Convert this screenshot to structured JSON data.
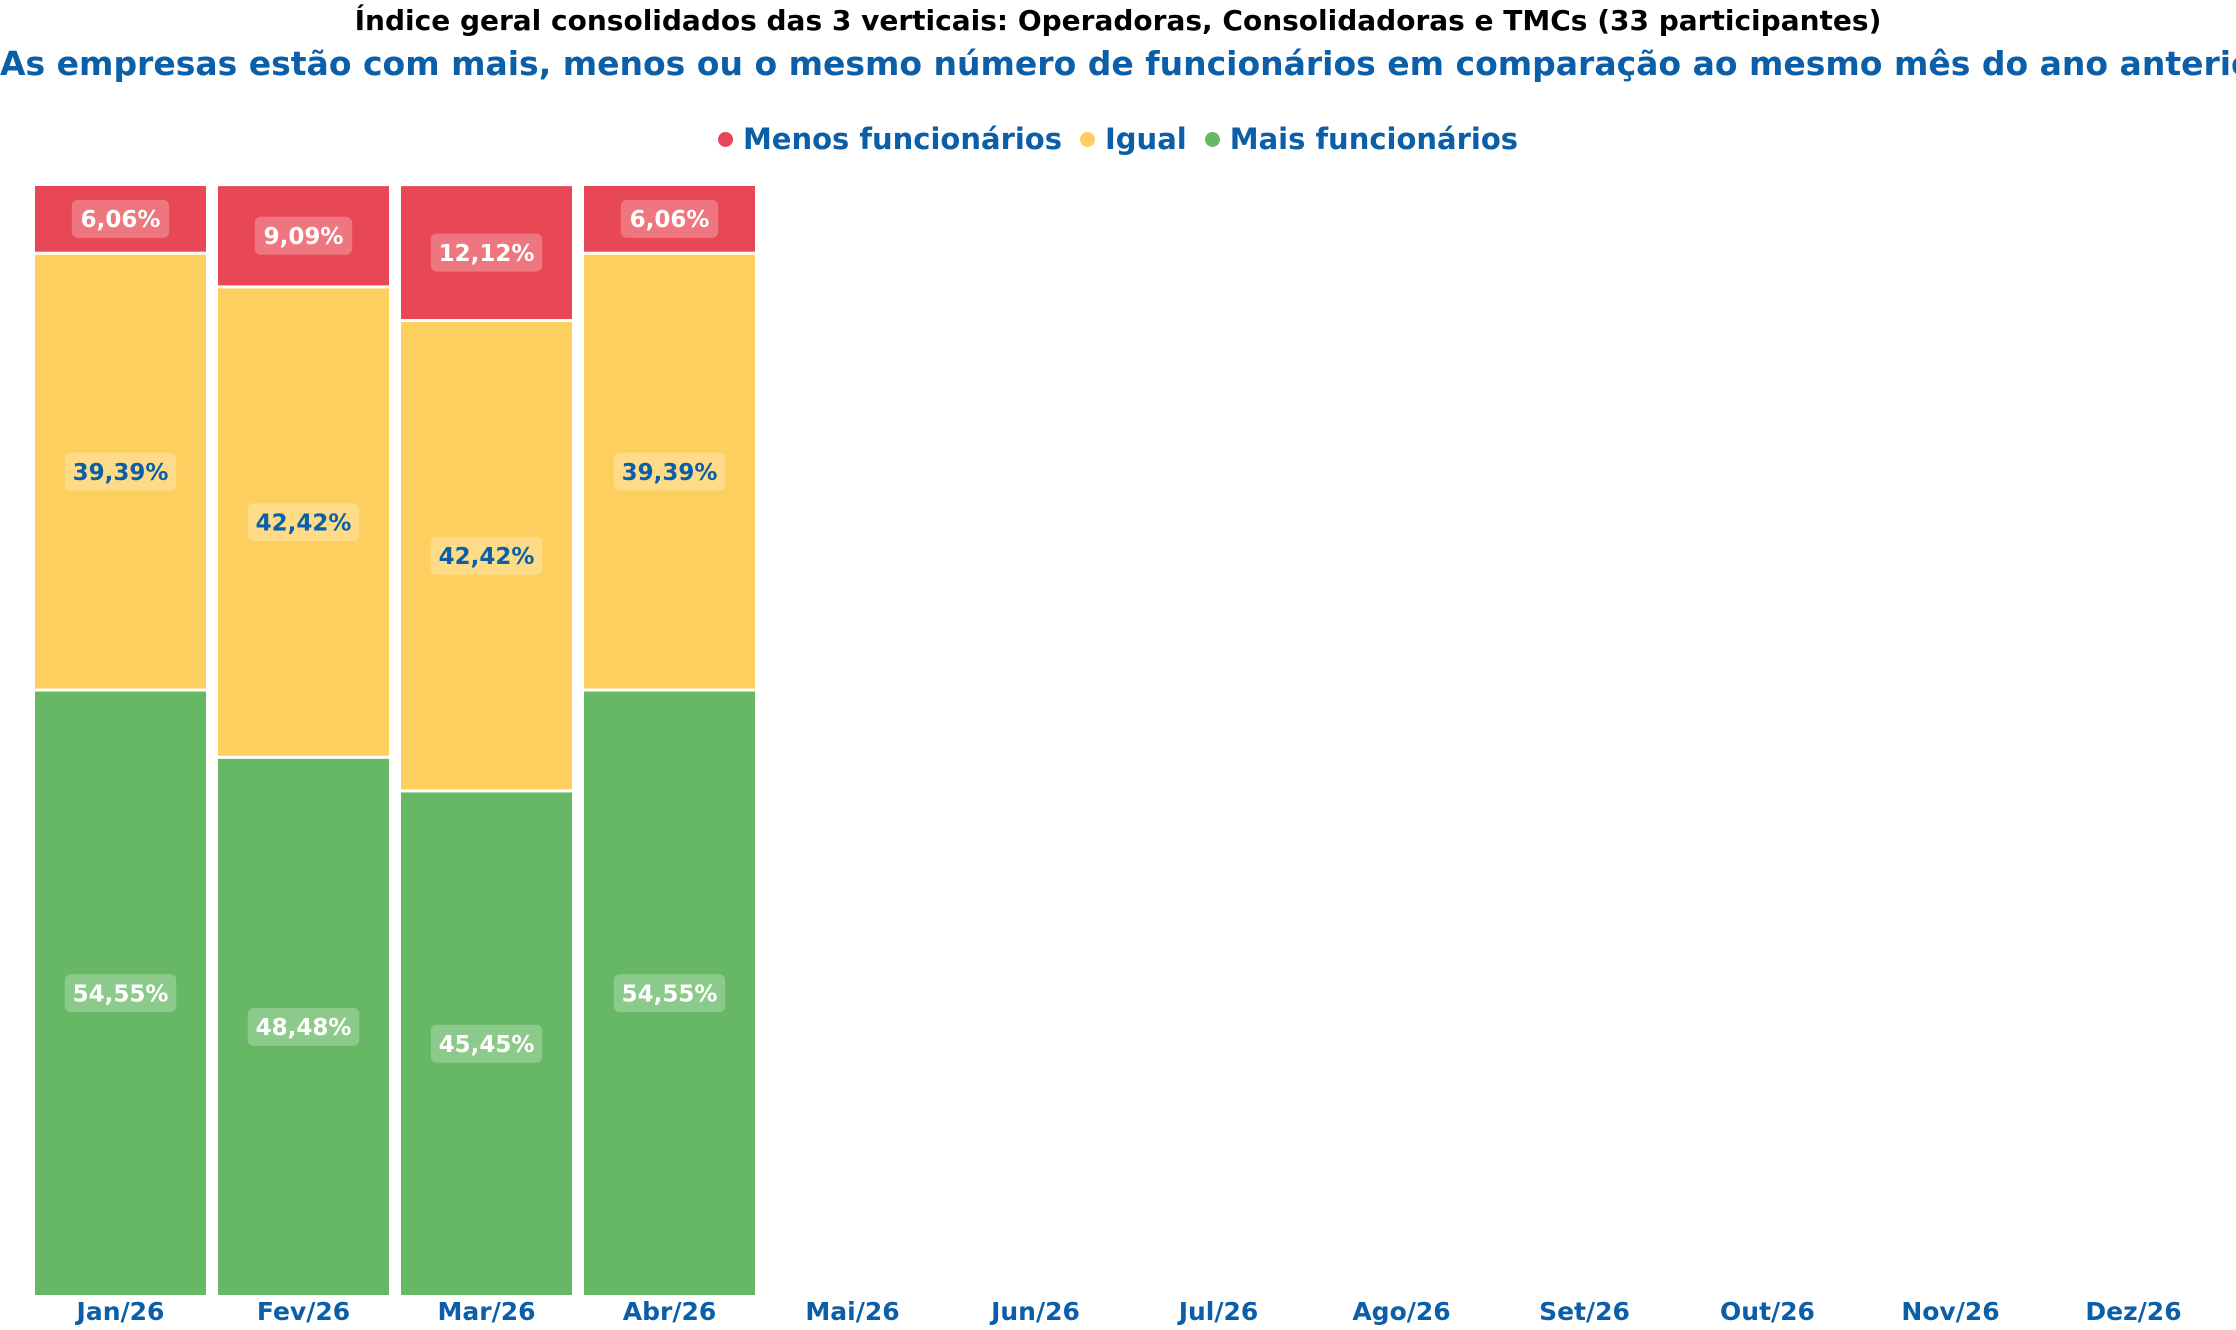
{
  "chart_data": {
    "type": "bar",
    "stacked": true,
    "title": "Índice geral consolidados das 3 verticais: Operadoras, Consolidadoras e TMCs (33 participantes)",
    "subtitle": "As empresas estão com mais, menos ou o mesmo número de funcionários em comparação ao mesmo mês do ano anterior.",
    "legend_position": "top-center",
    "grid": false,
    "ylim": [
      0,
      100
    ],
    "categories": [
      "Jan/26",
      "Fev/26",
      "Mar/26",
      "Abr/26",
      "Mai/26",
      "Jun/26",
      "Jul/26",
      "Ago/26",
      "Set/26",
      "Out/26",
      "Nov/26",
      "Dez/26"
    ],
    "series": [
      {
        "name": "Mais funcionários",
        "color": "#66b864",
        "label_text_color": "#ffffff",
        "values": [
          54.55,
          48.48,
          45.45,
          54.55,
          null,
          null,
          null,
          null,
          null,
          null,
          null,
          null
        ],
        "labels": [
          "54,55%",
          "48,48%",
          "45,45%",
          "54,55%",
          "",
          "",
          "",
          "",
          "",
          "",
          "",
          ""
        ]
      },
      {
        "name": "Igual",
        "color": "#fdcf5f",
        "label_text_color": "#0b5ea8",
        "values": [
          39.39,
          42.42,
          42.42,
          39.39,
          null,
          null,
          null,
          null,
          null,
          null,
          null,
          null
        ],
        "labels": [
          "39,39%",
          "42,42%",
          "42,42%",
          "39,39%",
          "",
          "",
          "",
          "",
          "",
          "",
          "",
          ""
        ]
      },
      {
        "name": "Menos funcionários",
        "color": "#e84855",
        "label_text_color": "#ffffff",
        "values": [
          6.06,
          9.09,
          12.12,
          6.06,
          null,
          null,
          null,
          null,
          null,
          null,
          null,
          null
        ],
        "labels": [
          "6,06%",
          "9,09%",
          "12,12%",
          "6,06%",
          "",
          "",
          "",
          "",
          "",
          "",
          "",
          ""
        ]
      }
    ],
    "legend_order": [
      "Menos funcionários",
      "Igual",
      "Mais funcionários"
    ],
    "tick_label_color": "#0b5ea8"
  }
}
